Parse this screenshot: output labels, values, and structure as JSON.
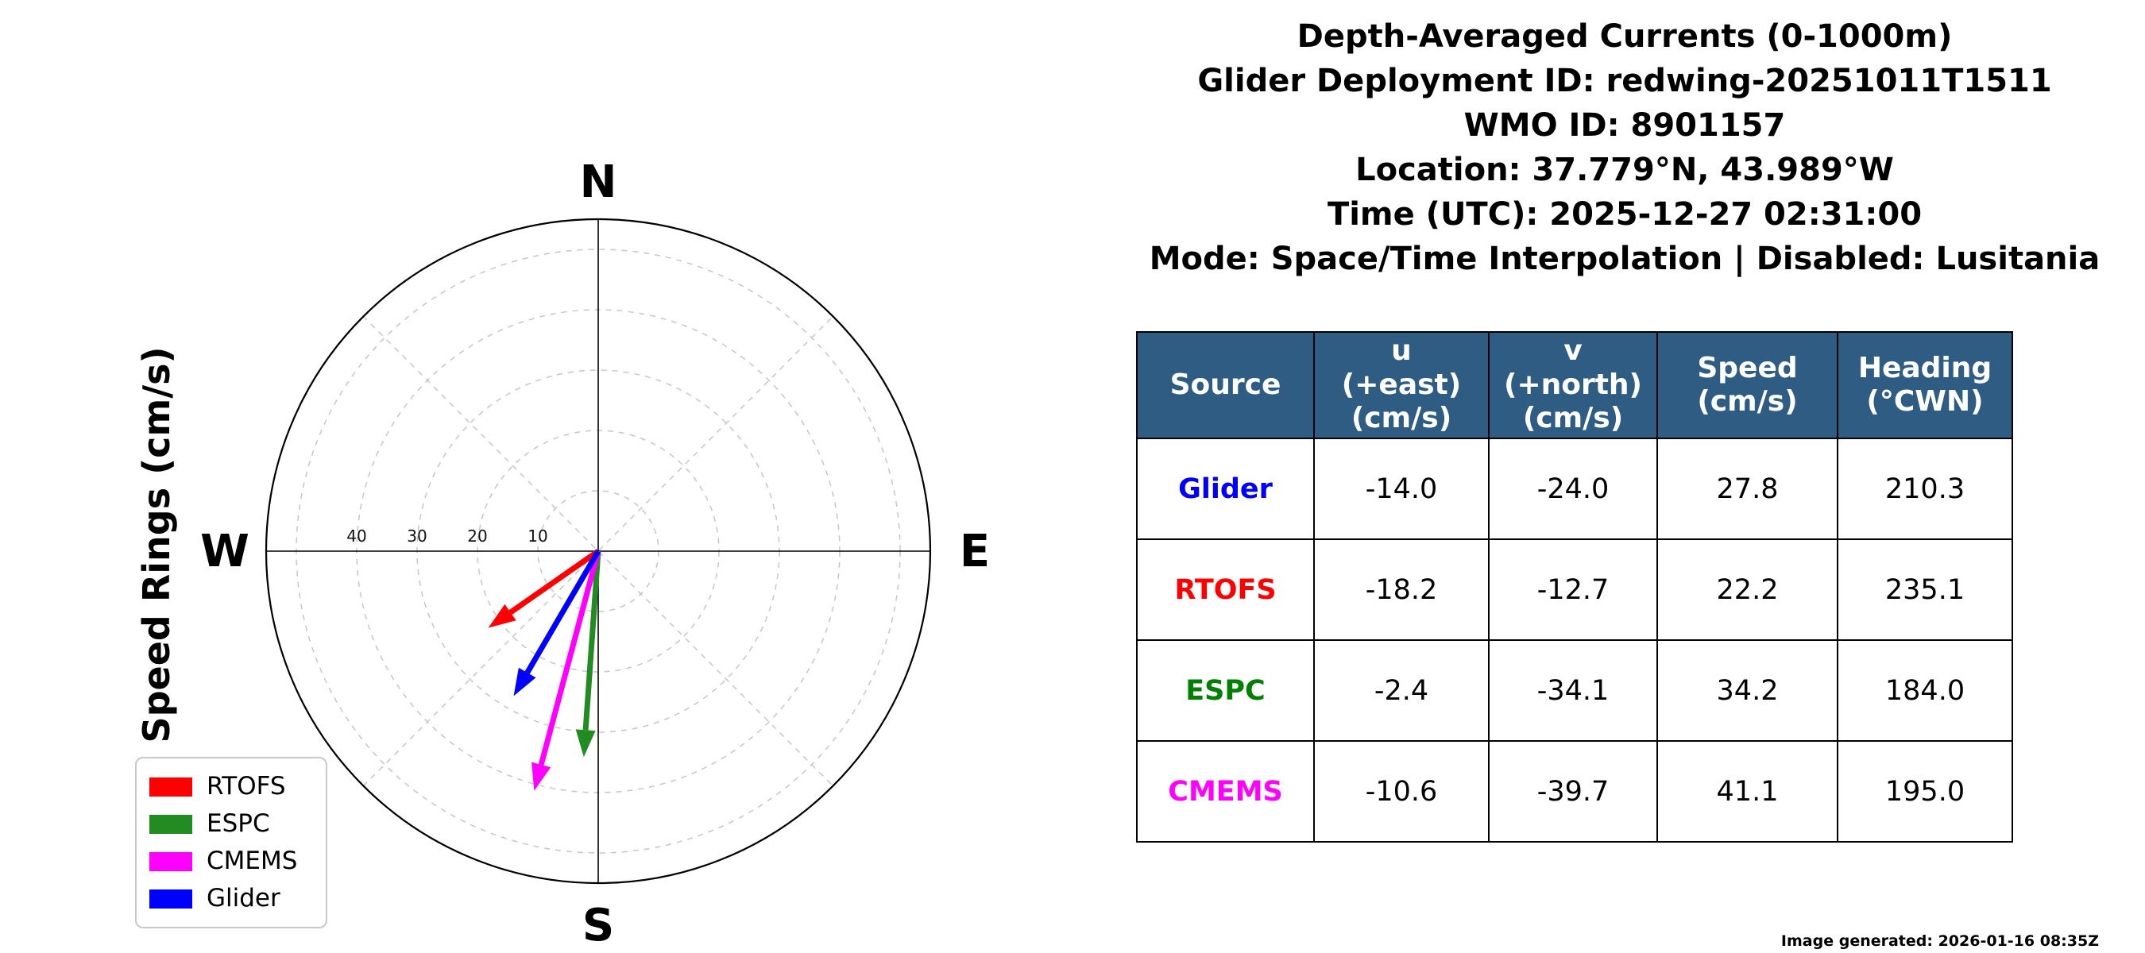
{
  "title_block": {
    "lines": [
      "Depth-Averaged Currents (0-1000m)",
      "Glider Deployment ID: redwing-20251011T1511",
      "WMO ID: 8901157",
      "Location: 37.779°N, 43.989°W",
      "Time (UTC): 2025-12-27 02:31:00",
      "Mode: Space/Time Interpolation | Disabled: Lusitania"
    ]
  },
  "plot": {
    "ylabel": "Speed Rings (cm/s)",
    "cardinals": {
      "n": "N",
      "e": "E",
      "s": "S",
      "w": "W"
    },
    "ring_labels": [
      "40",
      "30",
      "20",
      "10"
    ],
    "legend": {
      "items": [
        {
          "label": "RTOFS",
          "color": "#ff0000"
        },
        {
          "label": "ESPC",
          "color": "#228b22"
        },
        {
          "label": "CMEMS",
          "color": "#ff00ff"
        },
        {
          "label": "Glider",
          "color": "#0000ff"
        }
      ]
    }
  },
  "footer": {
    "generated": "Image generated: 2026-01-16 08:35Z"
  },
  "chart_data": [
    {
      "type": "scatter",
      "subtype": "polar_vector_compass",
      "title": "Depth-Averaged Currents (0-1000m)",
      "radial_axis_label": "Speed Rings (cm/s)",
      "units": "cm/s",
      "ring_values_cms": [
        10,
        20,
        30,
        40,
        50
      ],
      "outer_radius_cms": 55,
      "cardinal_labels": [
        "N",
        "E",
        "S",
        "W"
      ],
      "grid": true,
      "legend_position": "lower left",
      "series": [
        {
          "name": "RTOFS",
          "color": "#ff0000",
          "u_cms": -18.2,
          "v_cms": -12.7,
          "speed_cms": 22.2,
          "heading_deg_cwn": 235.1
        },
        {
          "name": "ESPC",
          "color": "#228b22",
          "u_cms": -2.4,
          "v_cms": -34.1,
          "speed_cms": 34.2,
          "heading_deg_cwn": 184.0
        },
        {
          "name": "CMEMS",
          "color": "#ff00ff",
          "u_cms": -10.6,
          "v_cms": -39.7,
          "speed_cms": 41.1,
          "heading_deg_cwn": 195.0
        },
        {
          "name": "Glider",
          "color": "#0000ff",
          "u_cms": -14.0,
          "v_cms": -24.0,
          "speed_cms": 27.8,
          "heading_deg_cwn": 210.3
        }
      ]
    },
    {
      "type": "table",
      "header_bg": "#2e5c82",
      "header_text_color": "#ffffff",
      "columns": [
        [
          "Source"
        ],
        [
          "u",
          "(+east)",
          "(cm/s)"
        ],
        [
          "v",
          "(+north)",
          "(cm/s)"
        ],
        [
          "Speed",
          "(cm/s)"
        ],
        [
          "Heading",
          "(°CWN)"
        ]
      ],
      "rows": [
        {
          "cells": [
            "Glider",
            "-14.0",
            "-24.0",
            "27.8",
            "210.3"
          ],
          "source_color": "#0000ff"
        },
        {
          "cells": [
            "RTOFS",
            "-18.2",
            "-12.7",
            "22.2",
            "235.1"
          ],
          "source_color": "#ff0000"
        },
        {
          "cells": [
            "ESPC",
            "-2.4",
            "-34.1",
            "34.2",
            "184.0"
          ],
          "source_color": "#008000"
        },
        {
          "cells": [
            "CMEMS",
            "-10.6",
            "-39.7",
            "41.1",
            "195.0"
          ],
          "source_color": "#ff00ff"
        }
      ]
    }
  ]
}
